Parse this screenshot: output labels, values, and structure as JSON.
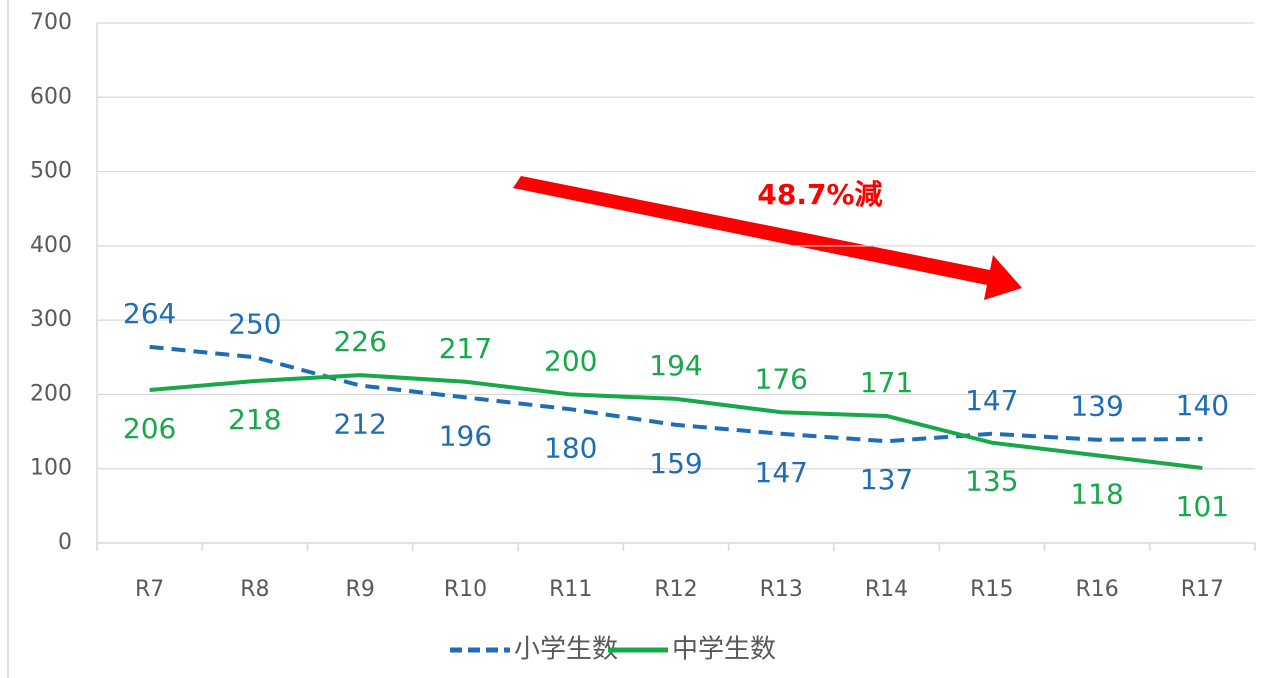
{
  "chart_data": {
    "type": "line",
    "categories": [
      "R7",
      "R8",
      "R9",
      "R10",
      "R11",
      "R12",
      "R13",
      "R14",
      "R15",
      "R16",
      "R17"
    ],
    "series": [
      {
        "name": "小学生数",
        "color": "#1f6db4",
        "dashed": true,
        "values": [
          264,
          250,
          212,
          196,
          180,
          159,
          147,
          137,
          147,
          139,
          140
        ]
      },
      {
        "name": "中学生数",
        "color": "#17a84a",
        "dashed": false,
        "values": [
          206,
          218,
          226,
          217,
          200,
          194,
          176,
          171,
          135,
          118,
          101
        ]
      }
    ],
    "annotation": "48.7%減",
    "annotation_color": "#ff0000",
    "ylim": [
      0,
      700
    ],
    "yticks": [
      0,
      100,
      200,
      300,
      400,
      500,
      600,
      700
    ],
    "grid": true,
    "legend": "bottom"
  }
}
